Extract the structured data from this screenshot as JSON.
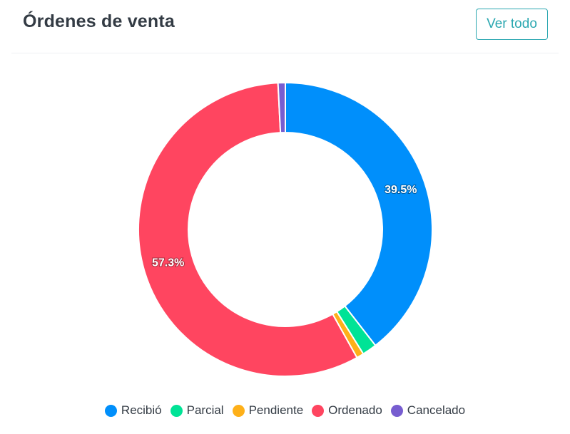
{
  "header": {
    "title": "Órdenes de venta",
    "view_all_label": "Ver todo"
  },
  "chart_data": {
    "type": "pie",
    "donut": true,
    "title": "Órdenes de venta",
    "categories": [
      "Recibió",
      "Parcial",
      "Pendiente",
      "Ordenado",
      "Cancelado"
    ],
    "values": [
      39.5,
      1.6,
      0.8,
      57.3,
      0.8
    ],
    "value_labels": [
      "39.5%",
      "",
      "",
      "57.3%",
      ""
    ],
    "colors": [
      "#008ffb",
      "#00e396",
      "#feb019",
      "#ff4560",
      "#775dd0"
    ],
    "legend_position": "bottom"
  }
}
